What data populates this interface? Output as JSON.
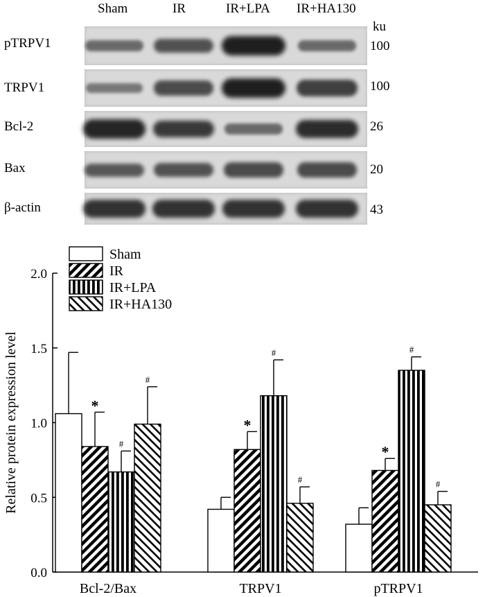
{
  "blot": {
    "lanes": [
      "Sham",
      "IR",
      "IR+LPA",
      "IR+HA130"
    ],
    "unit": "ku",
    "rows": [
      {
        "label": "pTRPV1",
        "kd": "100",
        "intensity": [
          0.35,
          0.55,
          0.95,
          0.35
        ]
      },
      {
        "label": "TRPV1",
        "kd": "100",
        "intensity": [
          0.25,
          0.6,
          0.95,
          0.7
        ]
      },
      {
        "label": "Bcl-2",
        "kd": "26",
        "intensity": [
          0.9,
          0.75,
          0.35,
          0.85
        ]
      },
      {
        "label": "Bax",
        "kd": "20",
        "intensity": [
          0.5,
          0.55,
          0.6,
          0.6
        ]
      },
      {
        "label": "β-actin",
        "kd": "43",
        "intensity": [
          0.8,
          0.8,
          0.8,
          0.8
        ]
      }
    ]
  },
  "chart_data": {
    "type": "bar",
    "title": "",
    "xlabel": "",
    "ylabel": "Relative protein expression level",
    "ylim": [
      0,
      2.0
    ],
    "yticks": [
      "0.0",
      "0.5",
      "1.0",
      "1.5",
      "2.0"
    ],
    "categories": [
      "Bcl-2/Bax",
      "TRPV1",
      "pTRPV1"
    ],
    "legend_position": "top-left",
    "series": [
      {
        "name": "Sham",
        "pattern": "blank",
        "values": [
          1.06,
          0.42,
          0.32
        ],
        "errors": [
          0.41,
          0.08,
          0.11
        ],
        "marks": [
          "",
          "",
          ""
        ]
      },
      {
        "name": "IR",
        "pattern": "diagonal",
        "values": [
          0.84,
          0.82,
          0.68
        ],
        "errors": [
          0.23,
          0.12,
          0.08
        ],
        "marks": [
          "*",
          "*",
          "*"
        ]
      },
      {
        "name": "IR+LPA",
        "pattern": "vertical",
        "values": [
          0.67,
          1.18,
          1.35
        ],
        "errors": [
          0.14,
          0.24,
          0.09
        ],
        "marks": [
          "#",
          "#",
          "#"
        ]
      },
      {
        "name": "IR+HA130",
        "pattern": "back-diagonal",
        "values": [
          0.99,
          0.46,
          0.45
        ],
        "errors": [
          0.25,
          0.11,
          0.09
        ],
        "marks": [
          "#",
          "#",
          "#"
        ]
      }
    ]
  }
}
